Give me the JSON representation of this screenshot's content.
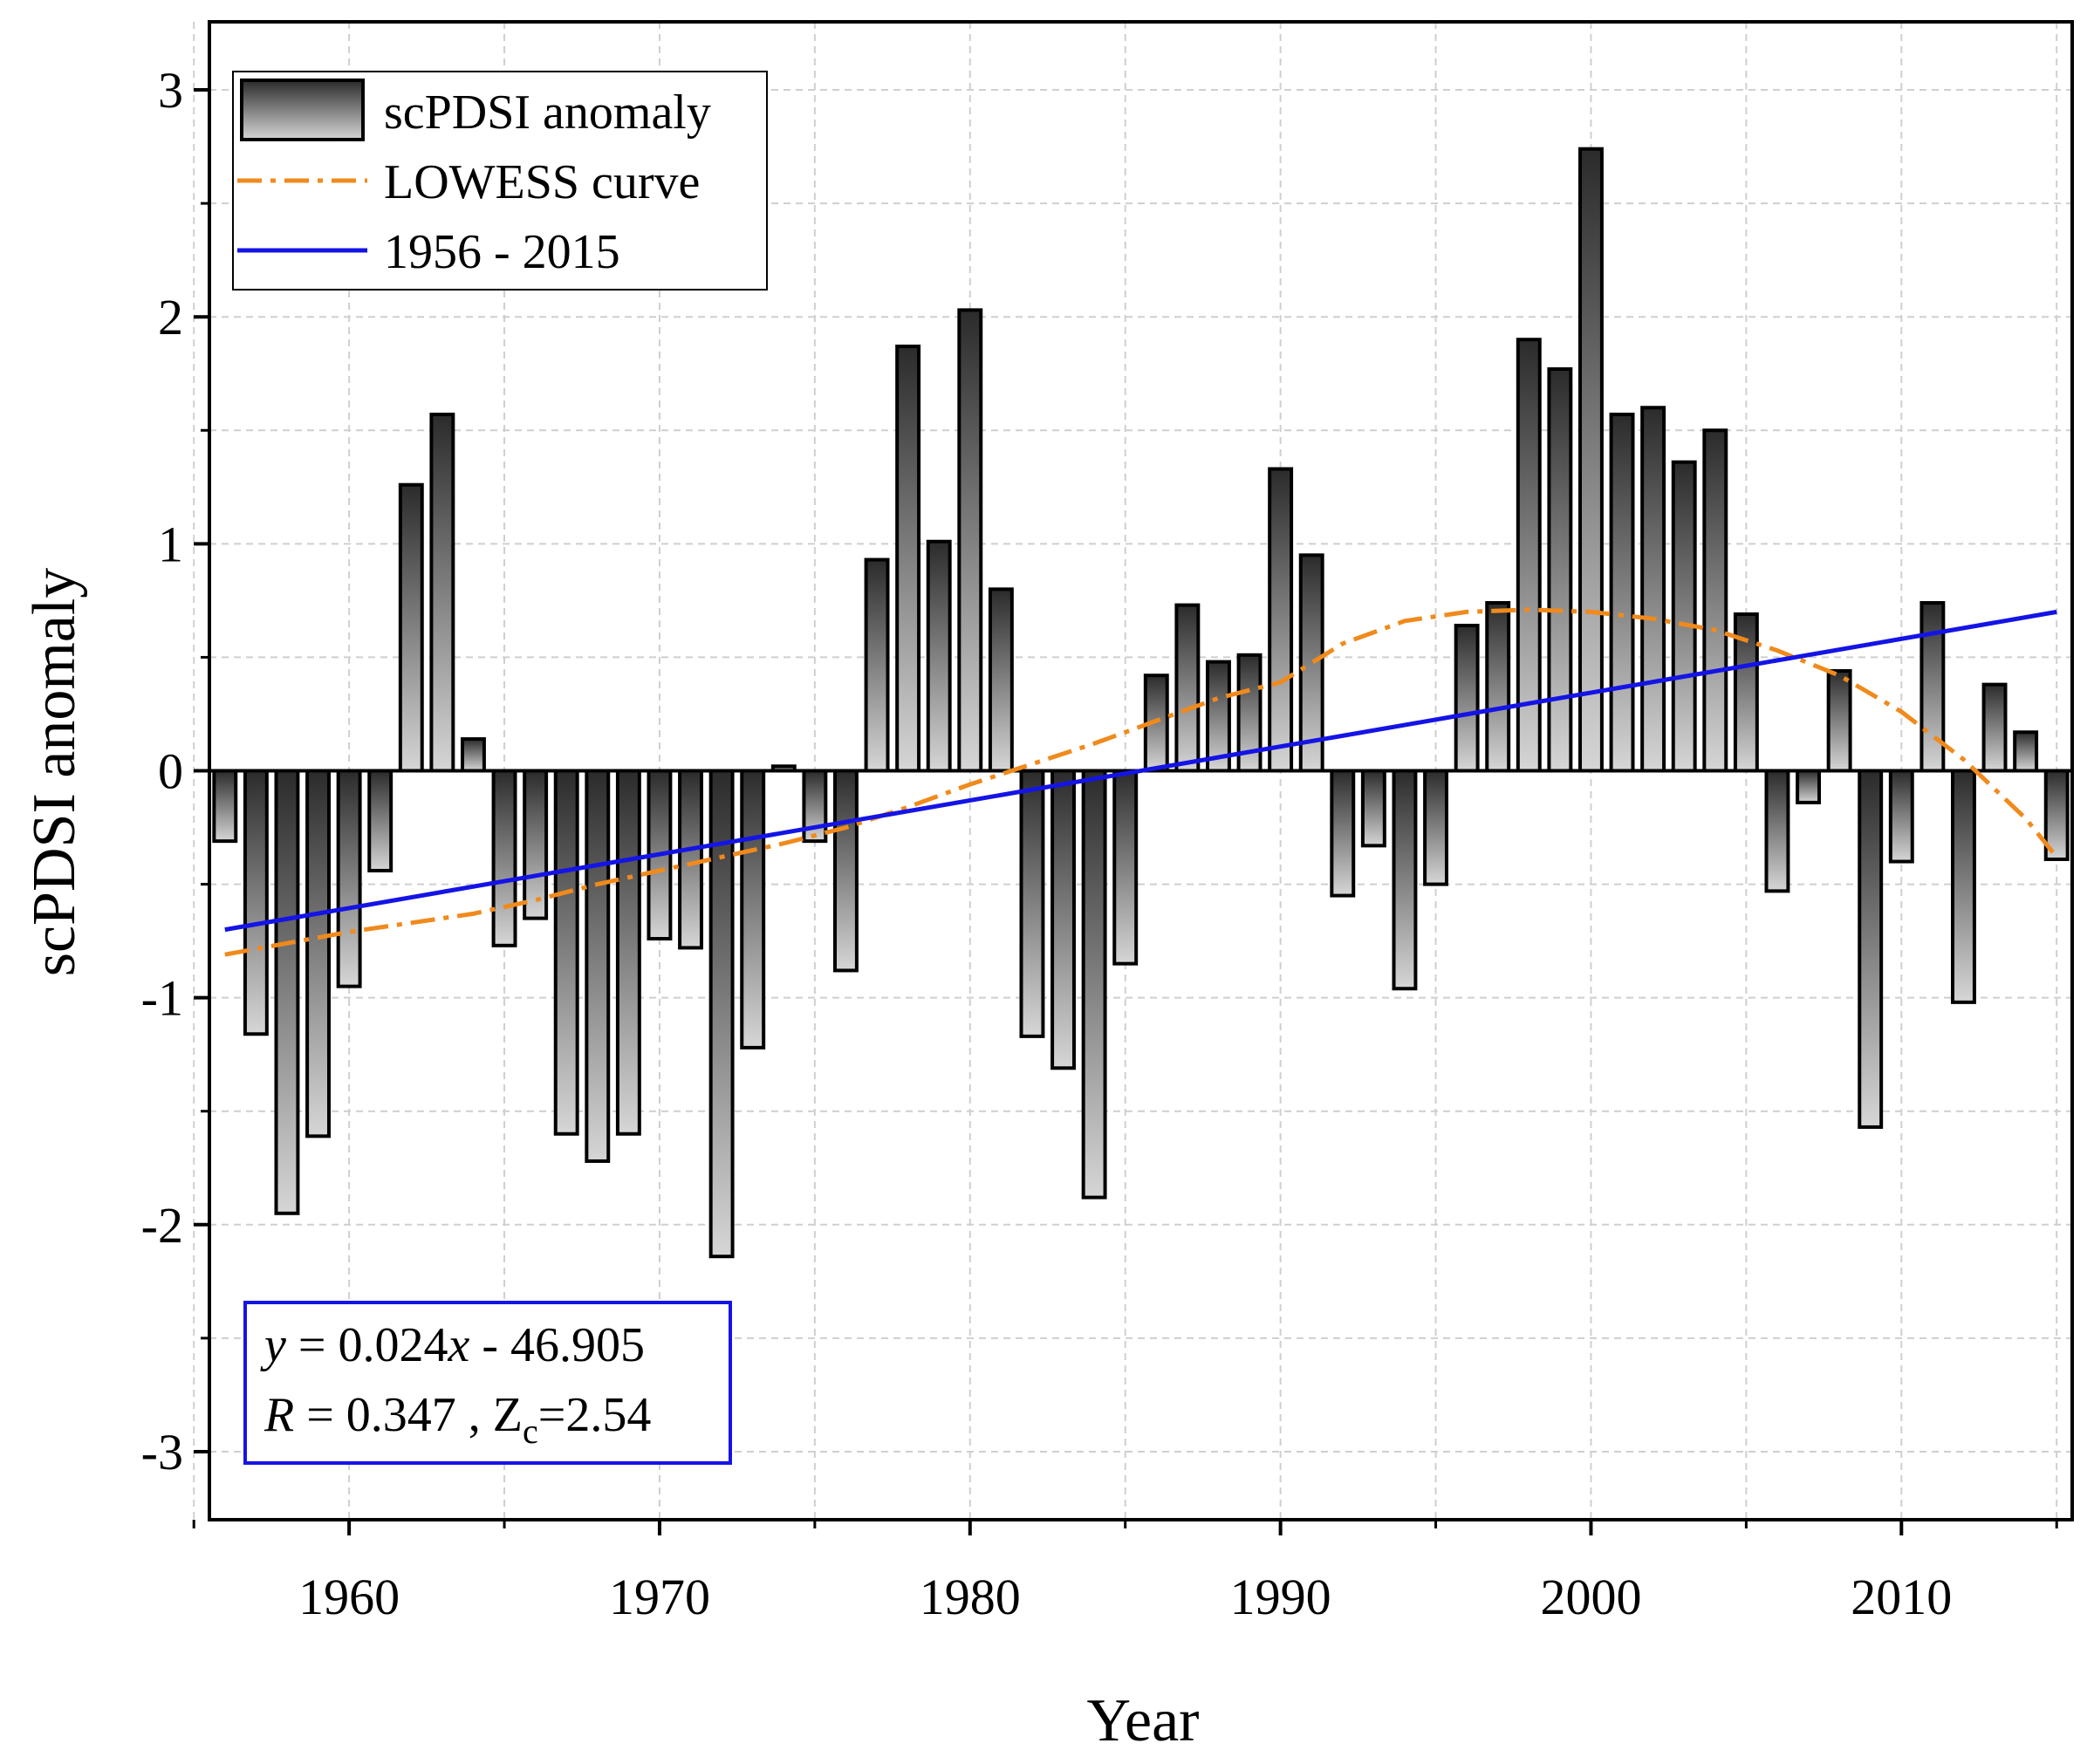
{
  "chart_data": {
    "type": "bar",
    "title": "",
    "xlabel": "Year",
    "ylabel": "scPDSI anomaly",
    "xlim": [
      1955.5,
      2015.5
    ],
    "ylim": [
      -3.3,
      3.3
    ],
    "x_ticks": [
      1960,
      1970,
      1980,
      1990,
      2000,
      2010
    ],
    "x_tick_labels": [
      "1960",
      "1970",
      "1980",
      "1990",
      "2000",
      "2010"
    ],
    "y_ticks": [
      -3,
      -2,
      -1,
      0,
      1,
      2,
      3
    ],
    "y_tick_labels": [
      "-3",
      "-2",
      "-1",
      "0",
      "1",
      "2",
      "3"
    ],
    "grid": true,
    "legend_position": "top-left",
    "colors": {
      "bar_dark": "#2b2b2b",
      "bar_light": "#d6d6d6",
      "lowess": "#f08a1c",
      "trend": "#1414e6",
      "equation_box": "#1414e6",
      "grid": "#cfcfcf"
    },
    "series": [
      {
        "name": "scPDSI anomaly",
        "type": "bar",
        "x": [
          1956,
          1957,
          1958,
          1959,
          1960,
          1961,
          1962,
          1963,
          1964,
          1965,
          1966,
          1967,
          1968,
          1969,
          1970,
          1971,
          1972,
          1973,
          1974,
          1975,
          1976,
          1977,
          1978,
          1979,
          1980,
          1981,
          1982,
          1983,
          1984,
          1985,
          1986,
          1987,
          1988,
          1989,
          1990,
          1991,
          1992,
          1993,
          1994,
          1995,
          1996,
          1997,
          1998,
          1999,
          2000,
          2001,
          2002,
          2003,
          2004,
          2005,
          2006,
          2007,
          2008,
          2009,
          2010,
          2011,
          2012,
          2013,
          2014,
          2015
        ],
        "values": [
          -0.31,
          -1.16,
          -1.95,
          -1.61,
          -0.95,
          -0.44,
          1.26,
          1.57,
          0.14,
          -0.77,
          -0.65,
          -1.6,
          -1.72,
          -1.6,
          -0.74,
          -0.78,
          -2.14,
          -1.22,
          0.02,
          -0.31,
          -0.88,
          0.93,
          1.87,
          1.01,
          2.03,
          0.8,
          -1.17,
          -1.31,
          -1.88,
          -0.85,
          0.42,
          0.73,
          0.48,
          0.51,
          1.33,
          0.95,
          -0.55,
          -0.33,
          -0.96,
          -0.5,
          0.64,
          0.74,
          1.9,
          1.77,
          2.74,
          1.57,
          1.6,
          1.36,
          1.5,
          0.69,
          -0.53,
          -0.14,
          0.44,
          -1.57,
          -0.4,
          0.74,
          -1.02,
          0.38,
          0.17,
          -0.39
        ]
      },
      {
        "name": "LOWESS curve",
        "type": "line",
        "style": "dash-dot",
        "x": [
          1956,
          1958,
          1960,
          1962,
          1964,
          1966,
          1968,
          1970,
          1972,
          1974,
          1976,
          1978,
          1980,
          1982,
          1984,
          1986,
          1988,
          1990,
          1992,
          1994,
          1996,
          1998,
          2000,
          2002,
          2004,
          2006,
          2008,
          2010,
          2012,
          2014,
          2015
        ],
        "values": [
          -0.81,
          -0.76,
          -0.71,
          -0.67,
          -0.63,
          -0.57,
          -0.5,
          -0.44,
          -0.38,
          -0.32,
          -0.25,
          -0.16,
          -0.06,
          0.03,
          0.12,
          0.22,
          0.32,
          0.39,
          0.56,
          0.66,
          0.7,
          0.71,
          0.7,
          0.67,
          0.62,
          0.53,
          0.42,
          0.26,
          0.05,
          -0.21,
          -0.38
        ]
      },
      {
        "name": "1956 - 2015",
        "type": "line",
        "style": "solid",
        "x": [
          1956,
          2015
        ],
        "values": [
          -0.7,
          0.7
        ]
      }
    ],
    "annotations": {
      "equation_line1": {
        "y": "y",
        "eq": " = 0.024",
        "x": "x",
        "rest": " - 46.905"
      },
      "equation_line2": {
        "r": "R",
        "rval": " = 0.347 , Z",
        "zsub": "c",
        "zval": "=2.54"
      }
    }
  }
}
